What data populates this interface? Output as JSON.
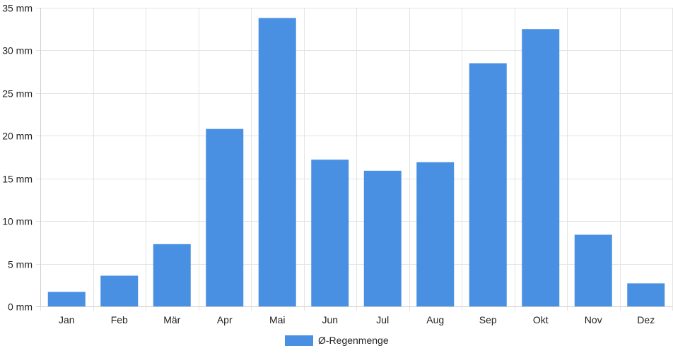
{
  "chart_data": {
    "type": "bar",
    "categories": [
      "Jan",
      "Feb",
      "Mär",
      "Apr",
      "Mai",
      "Jun",
      "Jul",
      "Aug",
      "Sep",
      "Okt",
      "Nov",
      "Dez"
    ],
    "series": [
      {
        "name": "Ø-Regenmenge",
        "color": "#4a90e2",
        "values": [
          1.7,
          3.6,
          7.3,
          20.8,
          33.8,
          17.2,
          15.9,
          16.9,
          28.5,
          32.5,
          8.4,
          2.7
        ]
      }
    ],
    "ylim": [
      0,
      35
    ],
    "yticks": [
      0,
      5,
      10,
      15,
      20,
      25,
      30,
      35
    ],
    "ytick_labels": [
      "0 mm",
      "5 mm",
      "10 mm",
      "15 mm",
      "20 mm",
      "25 mm",
      "30 mm",
      "35 mm"
    ],
    "grid": true,
    "legend_position": "bottom-center"
  }
}
